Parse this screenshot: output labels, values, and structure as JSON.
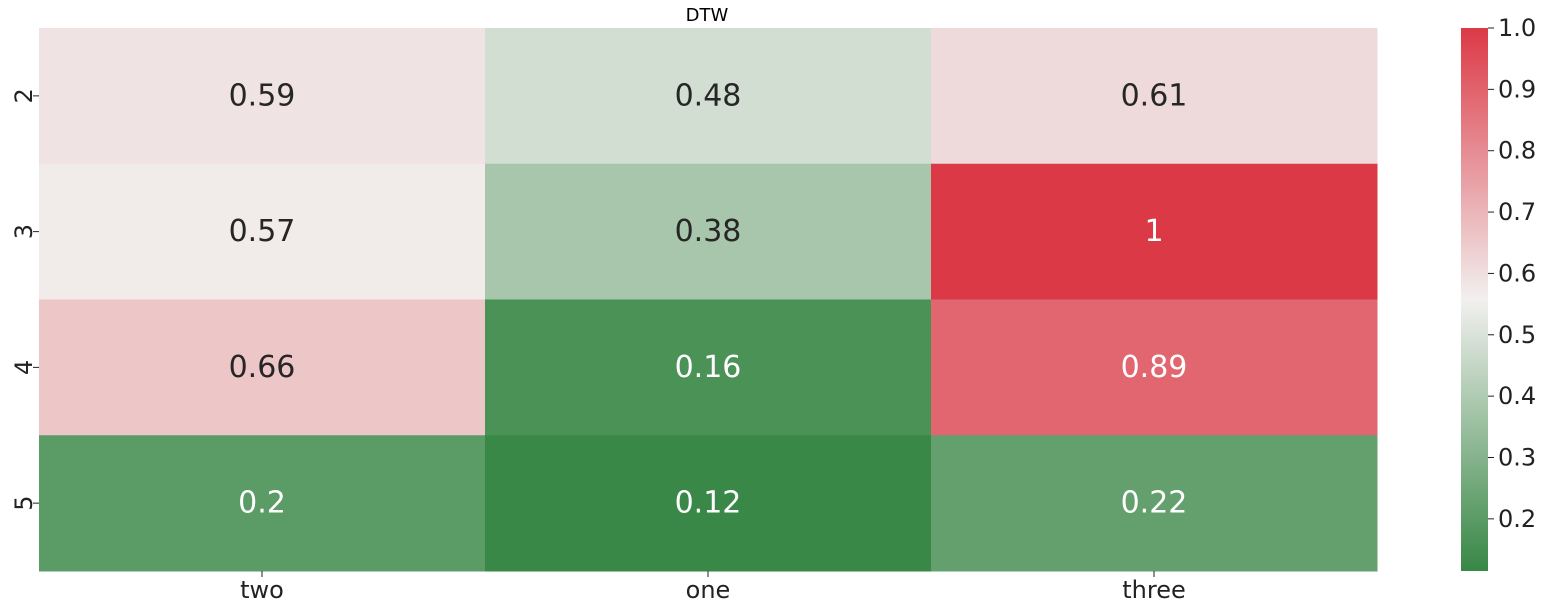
{
  "chart_data": {
    "type": "heatmap",
    "title": "DTW",
    "xlabel": "",
    "ylabel": "",
    "x_categories": [
      "two",
      "one",
      "three"
    ],
    "y_categories": [
      "2",
      "3",
      "4",
      "5"
    ],
    "values": [
      [
        0.59,
        0.48,
        0.61
      ],
      [
        0.57,
        0.38,
        1.0
      ],
      [
        0.66,
        0.16,
        0.89
      ],
      [
        0.2,
        0.12,
        0.22
      ]
    ],
    "value_labels": [
      [
        "0.59",
        "0.48",
        "0.61"
      ],
      [
        "0.57",
        "0.38",
        "1"
      ],
      [
        "0.66",
        "0.16",
        "0.89"
      ],
      [
        "0.2",
        "0.12",
        "0.22"
      ]
    ],
    "colorbar": {
      "vmin": 0.115,
      "vmax": 1.0,
      "ticks": [
        0.2,
        0.3,
        0.4,
        0.5,
        0.6,
        0.7,
        0.8,
        0.9,
        1.0
      ],
      "tick_labels": [
        "0.2",
        "0.3",
        "0.4",
        "0.5",
        "0.6",
        "0.7",
        "0.8",
        "0.9",
        "1.0"
      ],
      "colors": {
        "low": "#378745",
        "mid": "#f2f0ef",
        "high": "#dc3946"
      }
    },
    "annotation_text_colors": {
      "dark": "#262626",
      "light": "#ffffff"
    }
  }
}
